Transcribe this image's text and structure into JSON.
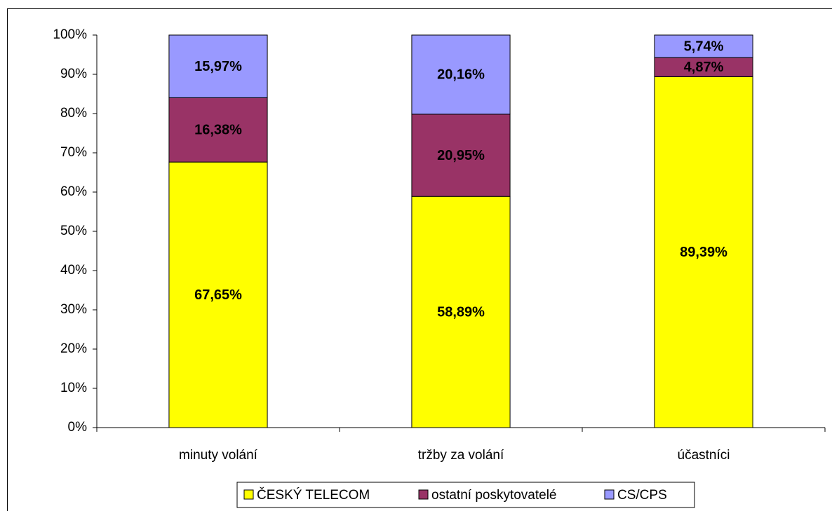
{
  "chart_data": {
    "type": "stacked-bar",
    "categories": [
      "minuty volání",
      "tržby za volání",
      "účastníci"
    ],
    "series": [
      {
        "name": "ČESKÝ TELECOM",
        "color": "#ffff00",
        "values": [
          67.65,
          58.89,
          89.39
        ],
        "value_labels": [
          "67,65%",
          "58,89%",
          "89,39%"
        ]
      },
      {
        "name": "ostatní poskytovatelé",
        "color": "#993366",
        "values": [
          16.38,
          20.95,
          4.87
        ],
        "value_labels": [
          "16,38%",
          "20,95%",
          "4,87%"
        ]
      },
      {
        "name": "CS/CPS",
        "color": "#9999ff",
        "values": [
          15.97,
          20.16,
          5.74
        ],
        "value_labels": [
          "15,97%",
          "20,16%",
          "5,74%"
        ]
      }
    ],
    "ylim": [
      0,
      100
    ],
    "yticks": [
      {
        "value": 0,
        "label": "0%"
      },
      {
        "value": 10,
        "label": "10%"
      },
      {
        "value": 20,
        "label": "20%"
      },
      {
        "value": 30,
        "label": "30%"
      },
      {
        "value": 40,
        "label": "40%"
      },
      {
        "value": 50,
        "label": "50%"
      },
      {
        "value": 60,
        "label": "60%"
      },
      {
        "value": 70,
        "label": "70%"
      },
      {
        "value": 80,
        "label": "80%"
      },
      {
        "value": 90,
        "label": "90%"
      },
      {
        "value": 100,
        "label": "100%"
      }
    ],
    "legend": "bottom"
  }
}
